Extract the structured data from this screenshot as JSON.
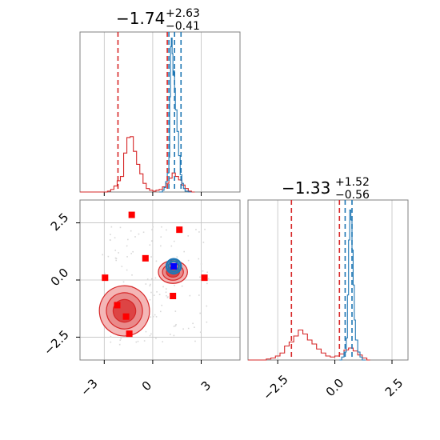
{
  "chart_data": {
    "type": "corner",
    "grid": true,
    "panels": [
      {
        "id": "hist-param-1",
        "type": "histogram",
        "title": {
          "value": "−1.74",
          "plus": "+2.63",
          "minus": "−0.41"
        },
        "xlim": [
          -4.5,
          5.4
        ],
        "series": [
          {
            "color": "#d62728",
            "bins": [
              [
                -4.5,
                0
              ],
              [
                -3.0,
                0
              ],
              [
                -2.8,
                1
              ],
              [
                -2.6,
                3
              ],
              [
                -2.4,
                7
              ],
              [
                -2.2,
                13
              ],
              [
                -2.0,
                18
              ],
              [
                -1.8,
                45
              ],
              [
                -1.6,
                63
              ],
              [
                -1.4,
                64
              ],
              [
                -1.2,
                47
              ],
              [
                -1.0,
                32
              ],
              [
                -0.8,
                21
              ],
              [
                -0.6,
                10
              ],
              [
                -0.4,
                4
              ],
              [
                -0.2,
                2
              ],
              [
                0.0,
                1
              ],
              [
                0.2,
                2
              ],
              [
                0.4,
                3
              ],
              [
                0.6,
                6
              ],
              [
                0.8,
                10
              ],
              [
                1.0,
                16
              ],
              [
                1.2,
                22
              ],
              [
                1.4,
                18
              ],
              [
                1.6,
                14
              ],
              [
                1.8,
                8
              ],
              [
                2.0,
                4
              ],
              [
                2.2,
                1
              ],
              [
                2.4,
                0
              ]
            ]
          },
          {
            "color": "#1f77b4",
            "bins": [
              [
                0.4,
                0
              ],
              [
                0.6,
                2
              ],
              [
                0.7,
                5
              ],
              [
                0.8,
                12
              ],
              [
                0.9,
                22
              ],
              [
                1.0,
                40
              ],
              [
                1.05,
                110
              ],
              [
                1.1,
                168
              ],
              [
                1.15,
                178
              ],
              [
                1.2,
                160
              ],
              [
                1.25,
                135
              ],
              [
                1.3,
                140
              ],
              [
                1.35,
                120
              ],
              [
                1.4,
                95
              ],
              [
                1.5,
                70
              ],
              [
                1.6,
                42
              ],
              [
                1.7,
                20
              ],
              [
                1.8,
                10
              ],
              [
                1.9,
                4
              ],
              [
                2.0,
                1
              ],
              [
                2.2,
                0
              ]
            ]
          }
        ],
        "red_quantiles": [
          -2.15,
          0.9
        ],
        "blue_quantiles": [
          1.0,
          1.35,
          1.75
        ],
        "ylim": [
          0,
          185
        ]
      },
      {
        "id": "scatter-param-1-vs-2",
        "type": "scatter",
        "xlim": [
          -4.5,
          5.4
        ],
        "ylim": [
          -3.5,
          3.5
        ],
        "red_points": [
          [
            -1.3,
            2.85
          ],
          [
            1.65,
            2.2
          ],
          [
            -0.45,
            0.95
          ],
          [
            -2.95,
            0.1
          ],
          [
            3.2,
            0.1
          ],
          [
            1.25,
            -0.7
          ],
          [
            -2.2,
            -1.1
          ],
          [
            -1.65,
            -1.6
          ],
          [
            -1.45,
            -2.35
          ]
        ],
        "blue_point": [
          1.3,
          0.6
        ],
        "red_contours": [
          {
            "center": [
              -1.75,
              -1.35
            ],
            "rx": 1.55,
            "ry": 2.2,
            "rot": -12
          },
          {
            "center": [
              1.25,
              0.35
            ],
            "rx": 0.9,
            "ry": 1.0,
            "rot": 0
          }
        ],
        "blue_contour": {
          "center": [
            1.3,
            0.6
          ],
          "rx": 0.45,
          "ry": 0.45,
          "rot": 0
        }
      },
      {
        "id": "hist-param-2",
        "type": "histogram",
        "title": {
          "value": "−1.33",
          "plus": "+1.52",
          "minus": "−0.56"
        },
        "xlim": [
          -3.8,
          3.2
        ],
        "series": [
          {
            "color": "#d62728",
            "bins": [
              [
                -3.8,
                0
              ],
              [
                -3.0,
                1
              ],
              [
                -2.8,
                2
              ],
              [
                -2.6,
                4
              ],
              [
                -2.4,
                7
              ],
              [
                -2.2,
                14
              ],
              [
                -2.0,
                18
              ],
              [
                -1.8,
                24
              ],
              [
                -1.6,
                30
              ],
              [
                -1.4,
                26
              ],
              [
                -1.2,
                20
              ],
              [
                -1.0,
                16
              ],
              [
                -0.8,
                11
              ],
              [
                -0.6,
                7
              ],
              [
                -0.4,
                4
              ],
              [
                -0.2,
                3
              ],
              [
                0.0,
                4
              ],
              [
                0.2,
                6
              ],
              [
                0.4,
                10
              ],
              [
                0.6,
                12
              ],
              [
                0.8,
                9
              ],
              [
                1.0,
                5
              ],
              [
                1.2,
                2
              ],
              [
                1.4,
                0
              ]
            ]
          },
          {
            "color": "#1f77b4",
            "bins": [
              [
                0.2,
                0
              ],
              [
                0.3,
                3
              ],
              [
                0.4,
                8
              ],
              [
                0.5,
                22
              ],
              [
                0.55,
                65
              ],
              [
                0.6,
                120
              ],
              [
                0.65,
                150
              ],
              [
                0.7,
                140
              ],
              [
                0.75,
                110
              ],
              [
                0.8,
                75
              ],
              [
                0.85,
                40
              ],
              [
                0.9,
                20
              ],
              [
                1.0,
                8
              ],
              [
                1.1,
                3
              ],
              [
                1.2,
                0
              ]
            ]
          }
        ],
        "red_quantiles": [
          -1.9,
          0.2
        ],
        "blue_quantiles": [
          0.45,
          0.75
        ],
        "ylim": [
          0,
          160
        ]
      }
    ],
    "ticks": {
      "bottom_left": [
        "−3",
        "0",
        "3"
      ],
      "left_scatter": [
        "2.5",
        "0.0",
        "−2.5"
      ],
      "bottom_right": [
        "−2.5",
        "0.0",
        "2.5"
      ]
    },
    "colors": {
      "red": "#d62728",
      "blue": "#1f77b4",
      "axis": "#808080",
      "grid": "#c0c0c0"
    }
  }
}
